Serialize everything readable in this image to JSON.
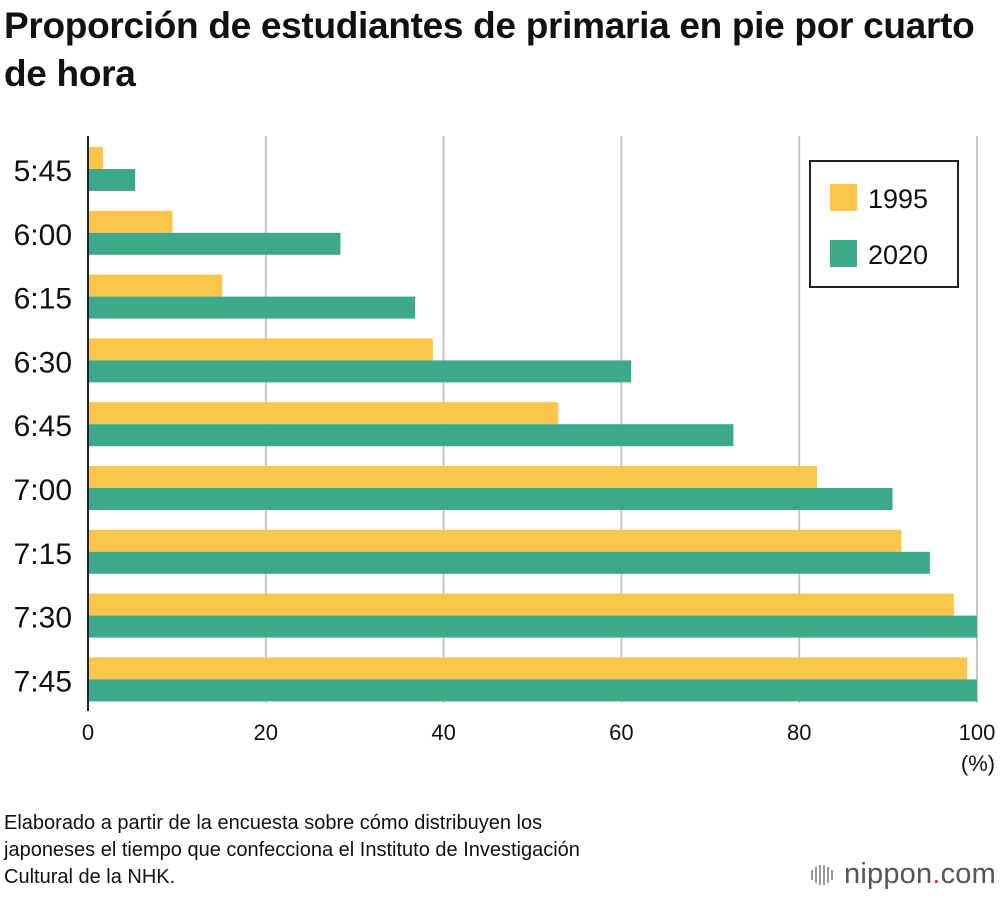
{
  "title": "Proporción de estudiantes de primaria en pie por cuarto de hora",
  "chart_data": {
    "type": "bar",
    "orientation": "horizontal",
    "categories": [
      "5:45",
      "6:00",
      "6:15",
      "6:30",
      "6:45",
      "7:00",
      "7:15",
      "7:30",
      "7:45"
    ],
    "series": [
      {
        "name": "1995",
        "color": "#f9c54b",
        "values": [
          1.7,
          9.5,
          15.1,
          38.8,
          52.9,
          82.0,
          91.5,
          97.4,
          98.9
        ]
      },
      {
        "name": "2020",
        "color": "#3ea98a",
        "values": [
          5.3,
          28.4,
          36.8,
          61.1,
          72.6,
          90.5,
          94.7,
          100,
          100
        ]
      }
    ],
    "xlim": [
      0,
      100
    ],
    "xticks": [
      "0",
      "20",
      "40",
      "60",
      "80",
      "100"
    ],
    "xlabel": "(%)",
    "grid": true,
    "legend_position": "top-right"
  },
  "source_lines": [
    "Elaborado a partir de la encuesta sobre cómo distribuyen los",
    "japoneses el tiempo que confecciona el Instituto de Investigación",
    "Cultural de la NHK."
  ],
  "brand": {
    "name": "nippon",
    "dot": ".",
    "suffix": "com"
  }
}
